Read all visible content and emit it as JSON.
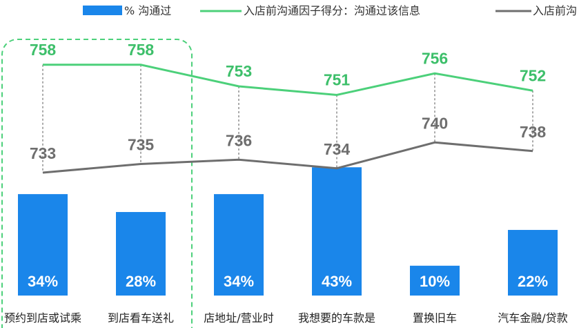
{
  "chart_data": {
    "type": "bar",
    "categories": [
      "预约到店或试乘",
      "到店看车送礼",
      "店地址/营业时",
      "我想要的车款是",
      "置换旧车",
      "汽车金融/贷款"
    ],
    "series": [
      {
        "name": "% 沟通过",
        "type": "bar",
        "color": "#1a86ea",
        "values": [
          34,
          28,
          34,
          43,
          10,
          22
        ],
        "labels": [
          "34%",
          "28%",
          "34%",
          "43%",
          "10%",
          "22%"
        ]
      },
      {
        "name": "入店前沟通因子得分：沟通过该信息",
        "type": "line",
        "color": "#4cd07a",
        "values": [
          758,
          758,
          753,
          751,
          756,
          752
        ]
      },
      {
        "name": "入店前沟",
        "type": "line",
        "color": "#6e6e6e",
        "values": [
          733,
          735,
          736,
          734,
          740,
          738
        ]
      }
    ],
    "ylim_bar": [
      0,
      50
    ],
    "ylim_line": [
      725,
      765
    ]
  }
}
